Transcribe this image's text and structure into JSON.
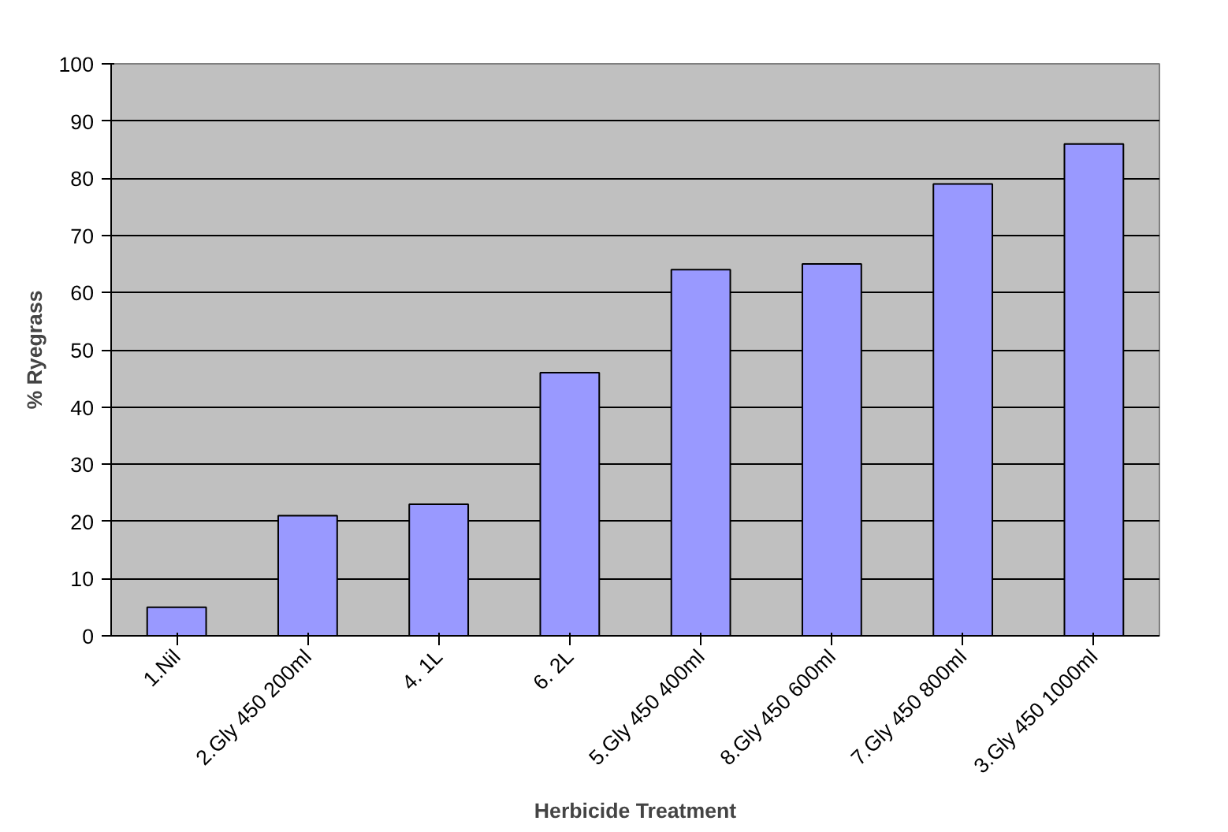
{
  "chart_data": {
    "type": "bar",
    "xlabel": "Herbicide Treatment",
    "ylabel": "% Ryegrass",
    "categories": [
      "1.Nil",
      "2.Gly 450 200ml",
      "4. 1L",
      "6. 2L",
      "5.Gly 450 400ml",
      "8.Gly 450 600ml",
      "7.Gly 450 800ml",
      "3.Gly 450 1000ml"
    ],
    "values": [
      5,
      21,
      23,
      46,
      64,
      65,
      79,
      86
    ],
    "color": "#9999ff",
    "ylim": [
      0,
      100
    ],
    "yticks": [
      0,
      10,
      20,
      30,
      40,
      50,
      60,
      70,
      80,
      90,
      100
    ],
    "grid": "y"
  }
}
